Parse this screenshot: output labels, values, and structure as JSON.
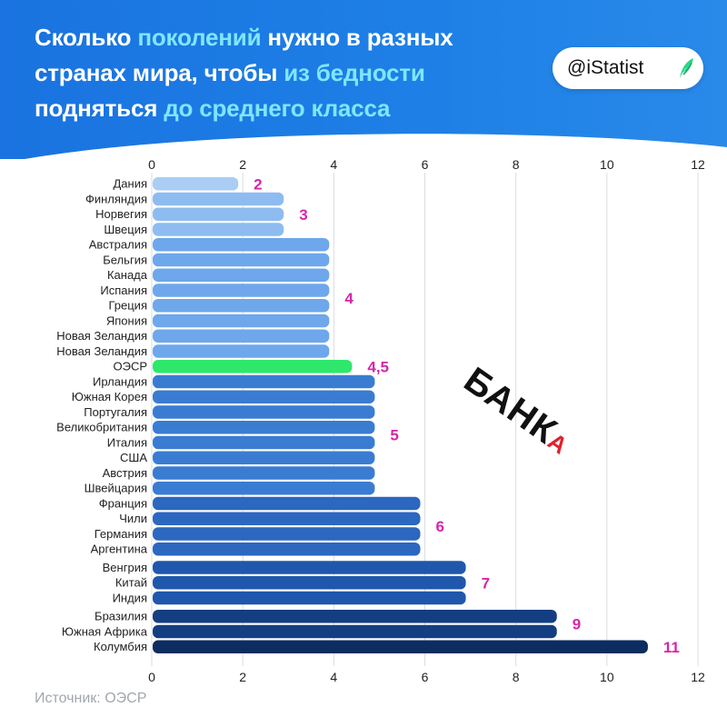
{
  "header": {
    "title_parts": [
      {
        "text": "Сколько ",
        "hl": false
      },
      {
        "text": "поколений",
        "hl": true
      },
      {
        "text": " нужно в разных странах мира, чтобы ",
        "hl": false
      },
      {
        "text": "из бедности",
        "hl": true
      },
      {
        "text": " подняться ",
        "hl": false
      },
      {
        "text": "до среднего класса",
        "hl": true
      }
    ],
    "brand": "@iStatist"
  },
  "watermark": {
    "main": "БАНК",
    "suffix": "А"
  },
  "source": "Источник: ОЭСР",
  "colors": {
    "header_bg": "#1a73e0",
    "title_highlight": "#7fe6ff",
    "value_label": "#d626a8",
    "highlight_bar": "#2de86b",
    "group_colors": [
      "#a9cdf4",
      "#8ebcf0",
      "#6ea7ec",
      "#4a8ce0",
      "#3a7cd2",
      "#2c67c0",
      "#1f57ac",
      "#143e82",
      "#0d2c60"
    ]
  },
  "chart_data": {
    "type": "bar",
    "orientation": "horizontal",
    "xlim": [
      0,
      12
    ],
    "xticks": [
      "0",
      "2",
      "4",
      "6",
      "8",
      "10",
      "12"
    ],
    "grid": true,
    "categories": [
      "Дания",
      "Финляндия",
      "Норвегия",
      "Швеция",
      "Австралия",
      "Бельгия",
      "Канада",
      "Испания",
      "Греция",
      "Япония",
      "Новая Зеландия",
      "Новая Зеландия",
      "ОЭСР",
      "Ирландия",
      "Южная Корея",
      "Португалия",
      "Великобритания",
      "Италия",
      "США",
      "Австрия",
      "Швейцария",
      "Франция",
      "Чили",
      "Германия",
      "Аргентина",
      "Венгрия",
      "Китай",
      "Индия",
      "Бразилия",
      "Южная Африка",
      "Колумбия"
    ],
    "values": [
      2,
      3,
      3,
      3,
      4,
      4,
      4,
      4,
      4,
      4,
      4,
      4,
      4.5,
      5,
      5,
      5,
      5,
      5,
      5,
      5,
      5,
      6,
      6,
      6,
      6,
      7,
      7,
      7,
      9,
      9,
      11
    ],
    "highlight": "ОЭСР",
    "group_labels": [
      {
        "label": "2",
        "value": 2
      },
      {
        "label": "3",
        "value": 3
      },
      {
        "label": "4",
        "value": 4
      },
      {
        "label": "4,5",
        "value": 4.5
      },
      {
        "label": "5",
        "value": 5
      },
      {
        "label": "6",
        "value": 6
      },
      {
        "label": "7",
        "value": 7
      },
      {
        "label": "9",
        "value": 9
      },
      {
        "label": "11",
        "value": 11
      }
    ]
  }
}
